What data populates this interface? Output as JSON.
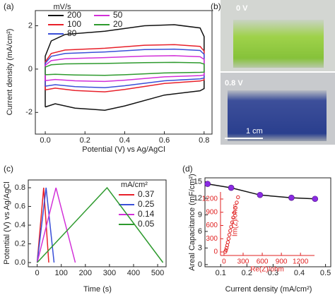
{
  "chart_data": [
    {
      "type": "line",
      "panel": "(a)",
      "xlabel": "Potential (V) vs Ag/AgCl",
      "ylabel": "Current density (mA/cm²)",
      "legend_title": "mV/s",
      "xlim": [
        -0.05,
        0.84
      ],
      "ylim": [
        -3,
        2.7
      ],
      "xticks": [
        {
          "value": 0,
          "label": "0.0"
        },
        0.2,
        0.4,
        0.6,
        0.8
      ],
      "yticks": [
        -2,
        0,
        2
      ],
      "x": [
        0,
        0,
        0.03,
        0.1,
        0.3,
        0.5,
        0.65,
        0.78,
        0.8,
        0.8,
        0.78,
        0.6,
        0.4,
        0.3,
        0.15,
        0.05,
        0
      ],
      "series": [
        {
          "name": "200",
          "color": "#111111",
          "values": [
            -1.75,
            0.6,
            1.3,
            1.6,
            1.75,
            2.0,
            2.05,
            1.9,
            1.5,
            -0.9,
            -1.0,
            -1.2,
            -1.7,
            -1.9,
            -1.8,
            -1.6,
            -1.75
          ]
        },
        {
          "name": "100",
          "color": "#e8202a",
          "values": [
            -0.96,
            0.33,
            0.72,
            0.88,
            0.96,
            1.1,
            1.13,
            1.05,
            0.83,
            -0.5,
            -0.55,
            -0.66,
            -0.94,
            -1.05,
            -0.99,
            -0.88,
            -0.96
          ]
        },
        {
          "name": "80",
          "color": "#3a4fd8",
          "values": [
            -0.79,
            0.27,
            0.59,
            0.72,
            0.79,
            0.9,
            0.92,
            0.86,
            0.68,
            -0.41,
            -0.45,
            -0.54,
            -0.77,
            -0.86,
            -0.81,
            -0.72,
            -0.79
          ]
        },
        {
          "name": "50",
          "color": "#d22fd8",
          "values": [
            -0.53,
            0.18,
            0.39,
            0.48,
            0.53,
            0.6,
            0.62,
            0.57,
            0.45,
            -0.27,
            -0.3,
            -0.36,
            -0.51,
            -0.57,
            -0.54,
            -0.48,
            -0.53
          ]
        },
        {
          "name": "20",
          "color": "#2e9a2e",
          "values": [
            -0.26,
            0.09,
            0.2,
            0.24,
            0.26,
            0.3,
            0.31,
            0.29,
            0.23,
            -0.14,
            -0.15,
            -0.18,
            -0.26,
            -0.29,
            -0.27,
            -0.24,
            -0.26
          ]
        }
      ]
    },
    {
      "type": "line",
      "panel": "(c)",
      "xlabel": "Time (s)",
      "ylabel": "Potential (V) vs Ag/AgCl",
      "legend_title": "mA/cm²",
      "xlim": [
        -37,
        535
      ],
      "ylim": [
        -0.045,
        0.883
      ],
      "xticks": [
        0,
        100,
        200,
        300,
        400,
        500
      ],
      "yticks": [
        {
          "value": 0,
          "label": "0.0"
        },
        0.2,
        0.4,
        0.6,
        0.8
      ],
      "series": [
        {
          "name": "0.37",
          "color": "#e8202a",
          "x": [
            0,
            27,
            48
          ],
          "values": [
            0,
            0.8,
            0
          ]
        },
        {
          "name": "0.25",
          "color": "#3a4fd8",
          "x": [
            0,
            37,
            70
          ],
          "values": [
            0,
            0.8,
            0
          ]
        },
        {
          "name": "0.14",
          "color": "#d22fd8",
          "x": [
            0,
            78,
            158
          ],
          "values": [
            0,
            0.8,
            0
          ]
        },
        {
          "name": "0.05",
          "color": "#2e9a2e",
          "x": [
            0,
            290,
            522
          ],
          "values": [
            0,
            0.8,
            0
          ]
        }
      ]
    },
    {
      "type": "line",
      "panel": "(d)",
      "xlabel": "Current density (mA/cm²)",
      "ylabel": "Areal Capacitance (mF/cm²)",
      "markers": true,
      "marker_color": "#8a2be2",
      "xlim": [
        0.04,
        0.52
      ],
      "ylim": [
        -0.4,
        15.7
      ],
      "xticks": [
        0.1,
        0.2,
        0.3,
        0.4,
        0.5
      ],
      "yticks": [
        0,
        3,
        6,
        9,
        12,
        15
      ],
      "series": [
        {
          "color": "#111111",
          "x": [
            0.05,
            0.14,
            0.25,
            0.37,
            0.46
          ],
          "values": [
            14.6,
            13.9,
            12.6,
            12.1,
            11.9
          ]
        }
      ]
    },
    {
      "type": "scatter",
      "xlabel": "Re(Z)/ohm",
      "ylabel": "Im(Z)/ohm",
      "text_color": "#e02020",
      "xlim": [
        -55,
        1420
      ],
      "ylim": [
        -80,
        1360
      ],
      "xticks": [
        0,
        300,
        600,
        900,
        1200
      ],
      "yticks": [
        0,
        300,
        600,
        900,
        1200
      ],
      "series": [
        {
          "color": "#e02020",
          "x": [
            20,
            30,
            40,
            50,
            60,
            72,
            85,
            98,
            112,
            128,
            145,
            162,
            180,
            200,
            220
          ],
          "values": [
            5,
            40,
            90,
            150,
            220,
            300,
            390,
            480,
            570,
            670,
            780,
            890,
            1000,
            1120,
            1240
          ]
        }
      ]
    }
  ],
  "photo": {
    "panel": "(b)",
    "top_label": "0 V",
    "bottom_label": "0.8 V",
    "scale_label": "1 cm"
  }
}
